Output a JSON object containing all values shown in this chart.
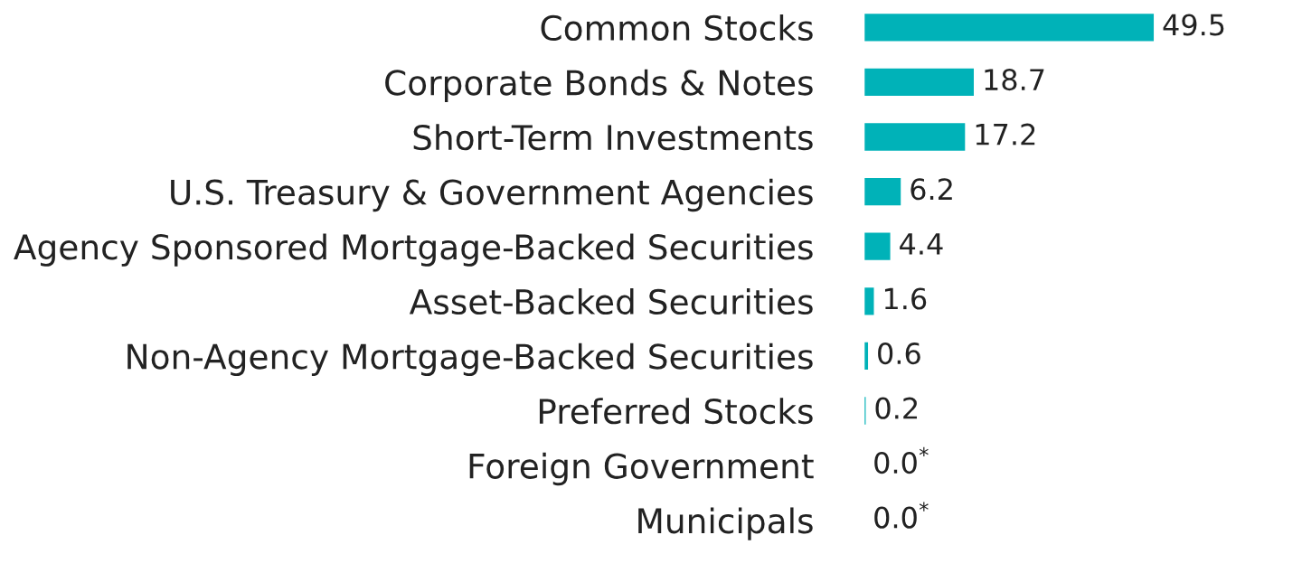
{
  "chart_data": {
    "type": "bar",
    "orientation": "horizontal",
    "categories": [
      "Common Stocks",
      "Corporate Bonds & Notes",
      "Short-Term Investments",
      "U.S. Treasury & Government Agencies",
      "Agency Sponsored Mortgage-Backed Securities",
      "Asset-Backed Securities",
      "Non-Agency Mortgage-Backed Securities",
      "Preferred Stocks",
      "Foreign Government",
      "Municipals"
    ],
    "values": [
      49.5,
      18.7,
      17.2,
      6.2,
      4.4,
      1.6,
      0.6,
      0.2,
      0.0,
      0.0
    ],
    "color": "#00b2b8",
    "value_labels": [
      "49.5",
      "18.7",
      "17.2",
      "6.2",
      "4.4",
      "1.6",
      "0.6",
      "0.2",
      "0.0$^{*}$",
      "0.0$^{*}$"
    ],
    "grid": false,
    "legend": false
  }
}
